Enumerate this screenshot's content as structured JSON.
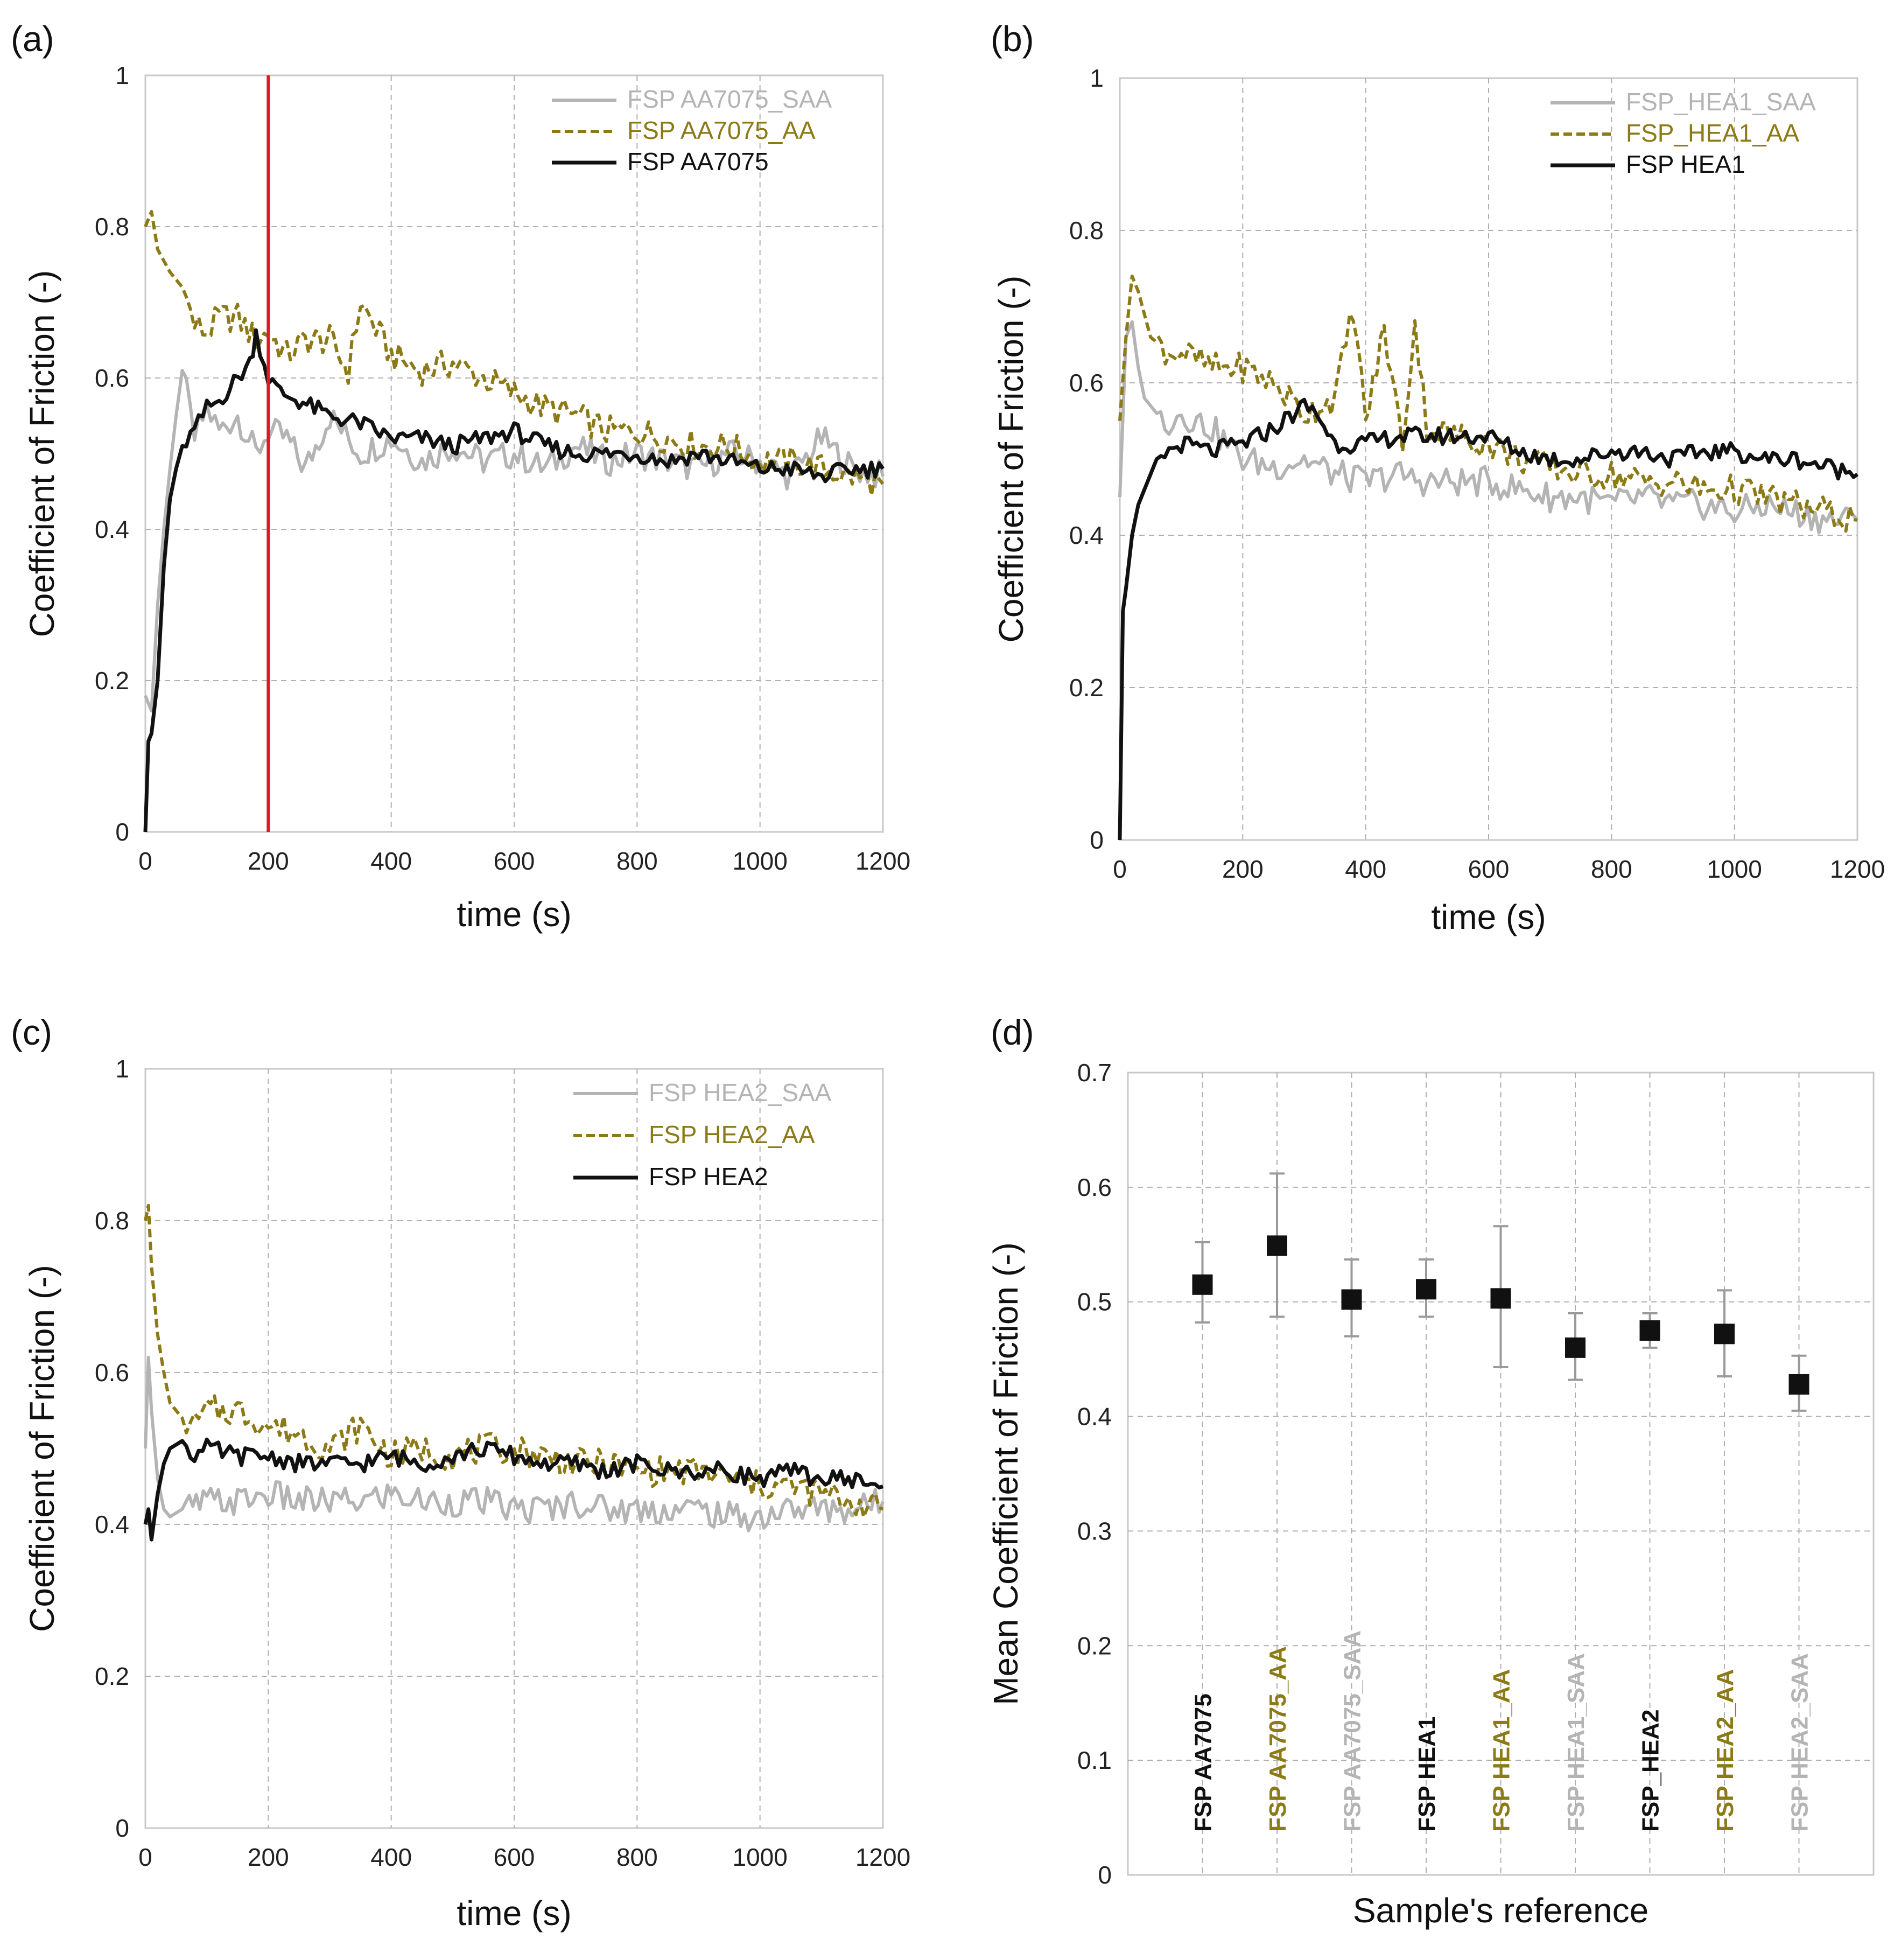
{
  "colors": {
    "black": "#111111",
    "grey": "#b4b4b4",
    "olive": "#8c7a16",
    "red": "#e01b1b",
    "grid": "#b0b0b0",
    "frame": "#c8c8c8"
  },
  "chart_data": [
    {
      "type": "line",
      "panel": "(a)",
      "xlabel": "time (s)",
      "ylabel": "Coefficient of Friction (-)",
      "xlim": [
        0,
        1200
      ],
      "ylim": [
        0,
        1
      ],
      "xticks": [
        "0",
        "200",
        "400",
        "600",
        "800",
        "1000",
        "1200"
      ],
      "yticks": [
        "0",
        "0.2",
        "0.4",
        "0.6",
        "0.8",
        "1"
      ],
      "vline_x": 200,
      "legend_position": "top-right",
      "series": [
        {
          "name": "FSP AA7075_SAA",
          "style": "grey",
          "x": [
            0,
            10,
            20,
            30,
            40,
            50,
            60,
            80,
            100,
            120,
            150,
            180,
            200,
            230,
            260,
            300,
            350,
            400,
            450,
            500,
            550,
            600,
            650,
            700,
            750,
            800,
            850,
            900,
            950,
            1000,
            1050,
            1100,
            1150,
            1200
          ],
          "y": [
            0.18,
            0.16,
            0.3,
            0.4,
            0.48,
            0.55,
            0.61,
            0.52,
            0.56,
            0.53,
            0.55,
            0.5,
            0.53,
            0.52,
            0.48,
            0.55,
            0.5,
            0.52,
            0.49,
            0.51,
            0.49,
            0.5,
            0.48,
            0.51,
            0.49,
            0.5,
            0.49,
            0.48,
            0.5,
            0.49,
            0.47,
            0.52,
            0.48,
            0.47
          ]
        },
        {
          "name": "FSP AA7075_AA",
          "style": "olive",
          "x": [
            0,
            10,
            20,
            40,
            60,
            80,
            100,
            120,
            150,
            180,
            200,
            230,
            260,
            300,
            330,
            350,
            400,
            450,
            500,
            550,
            600,
            650,
            700,
            750,
            800,
            850,
            900,
            950,
            1000,
            1050,
            1100,
            1150,
            1200
          ],
          "y": [
            0.8,
            0.82,
            0.77,
            0.74,
            0.72,
            0.67,
            0.66,
            0.68,
            0.68,
            0.65,
            0.66,
            0.63,
            0.65,
            0.65,
            0.61,
            0.7,
            0.63,
            0.61,
            0.62,
            0.6,
            0.58,
            0.56,
            0.55,
            0.53,
            0.53,
            0.52,
            0.51,
            0.51,
            0.49,
            0.49,
            0.48,
            0.47,
            0.46
          ]
        },
        {
          "name": "FSP AA7075",
          "style": "black",
          "x": [
            0,
            5,
            10,
            20,
            30,
            40,
            50,
            60,
            80,
            100,
            120,
            150,
            170,
            180,
            200,
            220,
            250,
            300,
            350,
            400,
            450,
            500,
            550,
            600,
            650,
            700,
            750,
            800,
            850,
            900,
            950,
            1000,
            1050,
            1100,
            1150,
            1200
          ],
          "y": [
            0.0,
            0.12,
            0.13,
            0.2,
            0.35,
            0.44,
            0.48,
            0.51,
            0.53,
            0.56,
            0.57,
            0.6,
            0.62,
            0.66,
            0.6,
            0.58,
            0.57,
            0.55,
            0.54,
            0.52,
            0.52,
            0.51,
            0.52,
            0.53,
            0.51,
            0.5,
            0.5,
            0.5,
            0.49,
            0.5,
            0.49,
            0.48,
            0.48,
            0.47,
            0.48,
            0.48
          ]
        }
      ]
    },
    {
      "type": "line",
      "panel": "(b)",
      "xlabel": "time (s)",
      "ylabel": "Coefficient of Friction (-)",
      "xlim": [
        0,
        1200
      ],
      "ylim": [
        0,
        1
      ],
      "xticks": [
        "0",
        "200",
        "400",
        "600",
        "800",
        "1000",
        "1200"
      ],
      "yticks": [
        "0",
        "0.2",
        "0.4",
        "0.6",
        "0.8",
        "1"
      ],
      "legend_position": "top-right",
      "series": [
        {
          "name": "FSP_HEA1_SAA",
          "style": "grey",
          "x": [
            0,
            10,
            20,
            30,
            40,
            60,
            80,
            100,
            150,
            200,
            250,
            300,
            350,
            400,
            450,
            500,
            550,
            600,
            650,
            700,
            750,
            800,
            850,
            900,
            950,
            1000,
            1050,
            1100,
            1150,
            1200
          ],
          "y": [
            0.45,
            0.66,
            0.68,
            0.62,
            0.58,
            0.56,
            0.55,
            0.56,
            0.54,
            0.5,
            0.49,
            0.5,
            0.48,
            0.47,
            0.48,
            0.47,
            0.47,
            0.47,
            0.46,
            0.45,
            0.45,
            0.44,
            0.45,
            0.44,
            0.44,
            0.43,
            0.44,
            0.43,
            0.42,
            0.42
          ]
        },
        {
          "name": "FSP_HEA1_AA",
          "style": "olive",
          "x": [
            0,
            10,
            20,
            30,
            50,
            80,
            100,
            150,
            200,
            250,
            300,
            350,
            380,
            400,
            430,
            460,
            480,
            500,
            550,
            600,
            650,
            700,
            750,
            800,
            850,
            900,
            950,
            1000,
            1050,
            1100,
            1150,
            1200
          ],
          "y": [
            0.55,
            0.66,
            0.74,
            0.72,
            0.66,
            0.64,
            0.64,
            0.62,
            0.62,
            0.6,
            0.56,
            0.58,
            0.7,
            0.55,
            0.67,
            0.52,
            0.68,
            0.54,
            0.53,
            0.52,
            0.5,
            0.49,
            0.48,
            0.48,
            0.47,
            0.47,
            0.46,
            0.46,
            0.45,
            0.44,
            0.43,
            0.42
          ]
        },
        {
          "name": "FSP HEA1",
          "style": "black",
          "x": [
            0,
            5,
            10,
            20,
            30,
            40,
            50,
            60,
            80,
            100,
            150,
            200,
            250,
            300,
            320,
            350,
            400,
            450,
            500,
            550,
            600,
            650,
            700,
            750,
            800,
            850,
            900,
            950,
            1000,
            1050,
            1100,
            1150,
            1200
          ],
          "y": [
            0.0,
            0.3,
            0.33,
            0.4,
            0.44,
            0.46,
            0.48,
            0.5,
            0.51,
            0.52,
            0.51,
            0.52,
            0.54,
            0.57,
            0.56,
            0.52,
            0.52,
            0.53,
            0.53,
            0.53,
            0.53,
            0.51,
            0.5,
            0.5,
            0.51,
            0.51,
            0.5,
            0.51,
            0.51,
            0.5,
            0.5,
            0.49,
            0.48
          ]
        }
      ]
    },
    {
      "type": "line",
      "panel": "(c)",
      "xlabel": "time (s)",
      "ylabel": "Coefficient of Friction (-)",
      "xlim": [
        0,
        1200
      ],
      "ylim": [
        0,
        1
      ],
      "xticks": [
        "0",
        "200",
        "400",
        "600",
        "800",
        "1000",
        "1200"
      ],
      "yticks": [
        "0",
        "0.2",
        "0.4",
        "0.6",
        "0.8",
        "1"
      ],
      "legend_position": "top-right",
      "series": [
        {
          "name": "FSP HEA2_SAA",
          "style": "grey",
          "x": [
            0,
            5,
            10,
            20,
            30,
            40,
            60,
            100,
            150,
            200,
            250,
            300,
            350,
            400,
            450,
            500,
            550,
            600,
            650,
            700,
            750,
            800,
            850,
            900,
            950,
            1000,
            1050,
            1100,
            1150,
            1200
          ],
          "y": [
            0.5,
            0.62,
            0.55,
            0.46,
            0.42,
            0.41,
            0.42,
            0.43,
            0.43,
            0.44,
            0.43,
            0.43,
            0.43,
            0.44,
            0.43,
            0.43,
            0.43,
            0.42,
            0.42,
            0.43,
            0.42,
            0.42,
            0.42,
            0.42,
            0.41,
            0.41,
            0.42,
            0.42,
            0.42,
            0.43
          ]
        },
        {
          "name": "FSP HEA2_AA",
          "style": "olive",
          "x": [
            0,
            5,
            10,
            20,
            30,
            40,
            60,
            80,
            100,
            150,
            200,
            250,
            300,
            350,
            400,
            450,
            500,
            550,
            600,
            650,
            700,
            750,
            800,
            850,
            900,
            950,
            1000,
            1050,
            1100,
            1150,
            1200
          ],
          "y": [
            0.8,
            0.82,
            0.74,
            0.65,
            0.6,
            0.56,
            0.54,
            0.53,
            0.55,
            0.55,
            0.53,
            0.52,
            0.5,
            0.53,
            0.49,
            0.5,
            0.49,
            0.5,
            0.5,
            0.49,
            0.48,
            0.48,
            0.47,
            0.47,
            0.47,
            0.46,
            0.45,
            0.45,
            0.44,
            0.43,
            0.42
          ]
        },
        {
          "name": "FSP HEA2",
          "style": "black",
          "x": [
            0,
            5,
            10,
            20,
            30,
            40,
            60,
            80,
            100,
            150,
            200,
            250,
            300,
            350,
            400,
            450,
            500,
            550,
            600,
            650,
            700,
            750,
            800,
            850,
            900,
            950,
            1000,
            1050,
            1100,
            1150,
            1200
          ],
          "y": [
            0.4,
            0.42,
            0.38,
            0.44,
            0.48,
            0.5,
            0.51,
            0.49,
            0.5,
            0.49,
            0.49,
            0.48,
            0.48,
            0.48,
            0.49,
            0.48,
            0.49,
            0.5,
            0.49,
            0.48,
            0.48,
            0.47,
            0.48,
            0.47,
            0.47,
            0.47,
            0.46,
            0.47,
            0.46,
            0.46,
            0.45
          ]
        }
      ]
    },
    {
      "type": "scatter",
      "panel": "(d)",
      "xlabel": "Sample's reference",
      "ylabel": "Mean Coefficient of Friction (-)",
      "ylim": [
        0,
        0.7
      ],
      "yticks": [
        "0",
        "0.1",
        "0.2",
        "0.3",
        "0.4",
        "0.5",
        "0.6",
        "0.7"
      ],
      "categories": [
        {
          "label": "FSP AA7075",
          "style": "black",
          "mean": 0.515,
          "err_low": 0.482,
          "err_high": 0.552
        },
        {
          "label": "FSP AA7075_AA",
          "style": "olive",
          "mean": 0.549,
          "err_low": 0.487,
          "err_high": 0.612
        },
        {
          "label": "FSP AA7075_SAA",
          "style": "grey",
          "mean": 0.502,
          "err_low": 0.47,
          "err_high": 0.537
        },
        {
          "label": "FSP HEA1",
          "style": "black",
          "mean": 0.511,
          "err_low": 0.487,
          "err_high": 0.537
        },
        {
          "label": "FSP HEA1_AA",
          "style": "olive",
          "mean": 0.503,
          "err_low": 0.443,
          "err_high": 0.566
        },
        {
          "label": "FSP HEA1_SAA",
          "style": "grey",
          "mean": 0.46,
          "err_low": 0.432,
          "err_high": 0.49
        },
        {
          "label": "FSP_HEA2",
          "style": "black",
          "mean": 0.475,
          "err_low": 0.46,
          "err_high": 0.49
        },
        {
          "label": "FSP HEA2_AA",
          "style": "olive",
          "mean": 0.472,
          "err_low": 0.435,
          "err_high": 0.51
        },
        {
          "label": "FSP HEA2_SAA",
          "style": "grey",
          "mean": 0.428,
          "err_low": 0.405,
          "err_high": 0.453
        }
      ]
    }
  ]
}
